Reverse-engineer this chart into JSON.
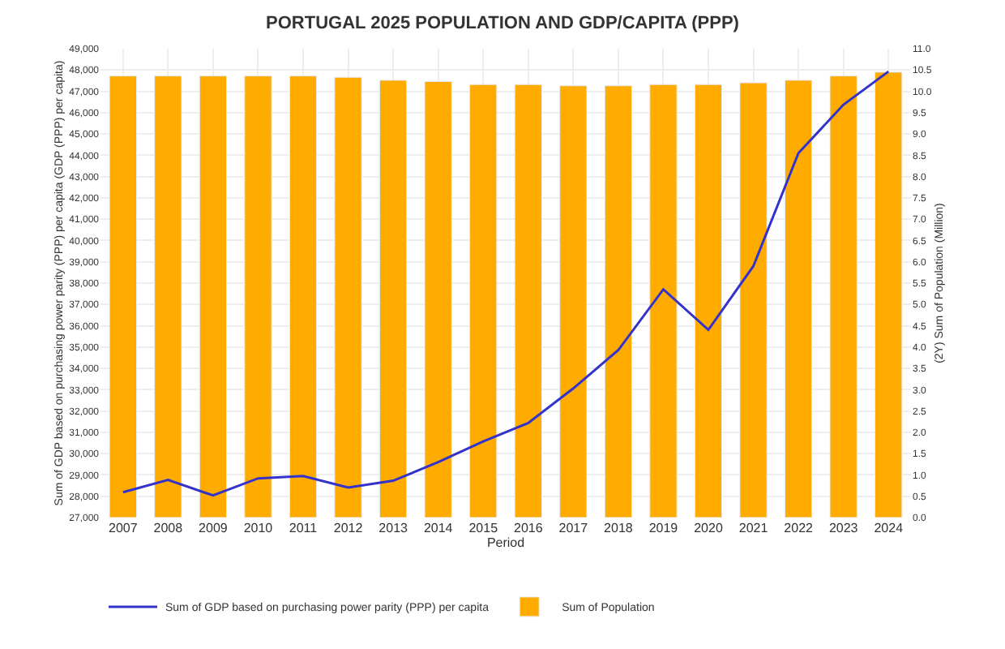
{
  "chart_data": {
    "type": "bar",
    "title": "PORTUGAL 2025 POPULATION AND GDP/CAPITA (PPP)",
    "xlabel": "Period",
    "ylabel": "Sum of GDP based on purchasing power parity (PPP) per capita (GDP (PPP) per capita)",
    "y2label": "(2Y) Sum of Population (Million)",
    "categories": [
      "2007",
      "2008",
      "2009",
      "2010",
      "2011",
      "2012",
      "2013",
      "2014",
      "2015",
      "2016",
      "2017",
      "2018",
      "2019",
      "2020",
      "2021",
      "2022",
      "2023",
      "2024"
    ],
    "series": [
      {
        "name": "Sum of GDP based on purchasing power parity (PPP) per capita",
        "type": "line",
        "color": "#3333cc",
        "values": [
          28190,
          28770,
          28040,
          28840,
          28950,
          28410,
          28730,
          29600,
          30570,
          31440,
          33060,
          34860,
          37710,
          35810,
          38800,
          44100,
          46370,
          47930
        ]
      },
      {
        "name": "Sum of Population",
        "axis": "y2",
        "color": "#ffab00",
        "values": [
          10.36,
          10.36,
          10.36,
          10.36,
          10.36,
          10.33,
          10.26,
          10.23,
          10.16,
          10.16,
          10.13,
          10.13,
          10.16,
          10.16,
          10.2,
          10.26,
          10.36,
          10.45
        ]
      }
    ],
    "ylim": [
      27000,
      49000
    ],
    "yticks": [
      {
        "value": 27000,
        "label": "27,000"
      },
      {
        "value": 28000,
        "label": "28,000"
      },
      {
        "value": 29000,
        "label": "29,000"
      },
      {
        "value": 30000,
        "label": "30,000"
      },
      {
        "value": 31000,
        "label": "31,000"
      },
      {
        "value": 32000,
        "label": "32,000"
      },
      {
        "value": 33000,
        "label": "33,000"
      },
      {
        "value": 34000,
        "label": "34,000"
      },
      {
        "value": 35000,
        "label": "35,000"
      },
      {
        "value": 36000,
        "label": "36,000"
      },
      {
        "value": 37000,
        "label": "37,000"
      },
      {
        "value": 38000,
        "label": "38,000"
      },
      {
        "value": 39000,
        "label": "39,000"
      },
      {
        "value": 40000,
        "label": "40,000"
      },
      {
        "value": 41000,
        "label": "41,000"
      },
      {
        "value": 42000,
        "label": "42,000"
      },
      {
        "value": 43000,
        "label": "43,000"
      },
      {
        "value": 44000,
        "label": "44,000"
      },
      {
        "value": 45000,
        "label": "45,000"
      },
      {
        "value": 46000,
        "label": "46,000"
      },
      {
        "value": 47000,
        "label": "47,000"
      },
      {
        "value": 48000,
        "label": "48,000"
      },
      {
        "value": 49000,
        "label": "49,000"
      }
    ],
    "y2lim": [
      0,
      11
    ],
    "y2ticks": [
      {
        "value": 0,
        "label": "0.0"
      },
      {
        "value": 0.5,
        "label": "0.5"
      },
      {
        "value": 1,
        "label": "1.0"
      },
      {
        "value": 1.5,
        "label": "1.5"
      },
      {
        "value": 2,
        "label": "2.0"
      },
      {
        "value": 2.5,
        "label": "2.5"
      },
      {
        "value": 3,
        "label": "3.0"
      },
      {
        "value": 3.5,
        "label": "3.5"
      },
      {
        "value": 4,
        "label": "4.0"
      },
      {
        "value": 4.5,
        "label": "4.5"
      },
      {
        "value": 5,
        "label": "5.0"
      },
      {
        "value": 5.5,
        "label": "5.5"
      },
      {
        "value": 6,
        "label": "6.0"
      },
      {
        "value": 6.5,
        "label": "6.5"
      },
      {
        "value": 7,
        "label": "7.0"
      },
      {
        "value": 7.5,
        "label": "7.5"
      },
      {
        "value": 8,
        "label": "8.0"
      },
      {
        "value": 8.5,
        "label": "8.5"
      },
      {
        "value": 9,
        "label": "9.0"
      },
      {
        "value": 9.5,
        "label": "9.5"
      },
      {
        "value": 10,
        "label": "10.0"
      },
      {
        "value": 10.5,
        "label": "10.5"
      },
      {
        "value": 11,
        "label": "11.0"
      }
    ],
    "grid": true,
    "legend": "bottom left",
    "marker": "none",
    "line_style": "solid"
  }
}
